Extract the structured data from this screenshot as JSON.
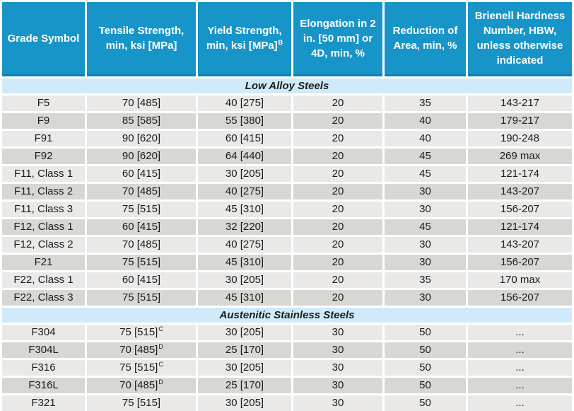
{
  "colors": {
    "header-bg": "#1895c8",
    "header-border": "#0e83ab",
    "header-text": "#ffffff",
    "section-bg": "#cfeaf8",
    "row-light": "#eae9e7",
    "row-dark": "#d8d7d4",
    "text": "#1c1c1c",
    "table-bottom": "#1b9fc7",
    "gap": "#ffffff"
  },
  "table": {
    "columns": [
      {
        "label": "Grade Symbol",
        "sup": ""
      },
      {
        "label": "Tensile Strength, min, ksi [MPa]",
        "sup": ""
      },
      {
        "label": "Yield Strength, min, ksi [MPa]",
        "sup": "B"
      },
      {
        "label": "Elongation in 2 in. [50 mm] or 4D, min, %",
        "sup": ""
      },
      {
        "label": "Reduction of Area, min, %",
        "sup": ""
      },
      {
        "label": "Brienell Hardness Number, HBW, unless otherwise indicated",
        "sup": ""
      }
    ],
    "sections": [
      {
        "title": "Low Alloy Steels",
        "rows": [
          {
            "cells": [
              {
                "v": "F5"
              },
              {
                "v": "70 [485]"
              },
              {
                "v": "40 [275]"
              },
              {
                "v": "20"
              },
              {
                "v": "35"
              },
              {
                "v": "143-217"
              }
            ]
          },
          {
            "cells": [
              {
                "v": "F9"
              },
              {
                "v": "85 [585]"
              },
              {
                "v": "55 [380]"
              },
              {
                "v": "20"
              },
              {
                "v": "40"
              },
              {
                "v": "179-217"
              }
            ]
          },
          {
            "cells": [
              {
                "v": "F91"
              },
              {
                "v": "90 [620]"
              },
              {
                "v": "60 [415]"
              },
              {
                "v": "20"
              },
              {
                "v": "40"
              },
              {
                "v": "190-248"
              }
            ]
          },
          {
            "cells": [
              {
                "v": "F92"
              },
              {
                "v": "90 [620]"
              },
              {
                "v": "64 [440]"
              },
              {
                "v": "20"
              },
              {
                "v": "45"
              },
              {
                "v": "269 max"
              }
            ]
          },
          {
            "cells": [
              {
                "v": "F11, Class 1"
              },
              {
                "v": "60 [415]"
              },
              {
                "v": "30 [205]"
              },
              {
                "v": "20"
              },
              {
                "v": "45"
              },
              {
                "v": "121-174"
              }
            ]
          },
          {
            "cells": [
              {
                "v": "F11, Class 2"
              },
              {
                "v": "70 [485]"
              },
              {
                "v": "40 [275]"
              },
              {
                "v": "20"
              },
              {
                "v": "30"
              },
              {
                "v": "143-207"
              }
            ]
          },
          {
            "cells": [
              {
                "v": "F11, Class 3"
              },
              {
                "v": "75 [515]"
              },
              {
                "v": "45 [310]"
              },
              {
                "v": "20"
              },
              {
                "v": "30"
              },
              {
                "v": "156-207"
              }
            ]
          },
          {
            "cells": [
              {
                "v": "F12, Class 1"
              },
              {
                "v": "60 [415]"
              },
              {
                "v": "32 [220]"
              },
              {
                "v": "20"
              },
              {
                "v": "45"
              },
              {
                "v": "121-174"
              }
            ]
          },
          {
            "cells": [
              {
                "v": "F12, Class 2"
              },
              {
                "v": "70 [485]"
              },
              {
                "v": "40 [275]"
              },
              {
                "v": "20"
              },
              {
                "v": "30"
              },
              {
                "v": "143-207"
              }
            ]
          },
          {
            "cells": [
              {
                "v": "F21"
              },
              {
                "v": "75 [515]"
              },
              {
                "v": "45 [310]"
              },
              {
                "v": "20"
              },
              {
                "v": "30"
              },
              {
                "v": "156-207"
              }
            ]
          },
          {
            "cells": [
              {
                "v": "F22, Class 1"
              },
              {
                "v": "60 [415]"
              },
              {
                "v": "30 [205]"
              },
              {
                "v": "20"
              },
              {
                "v": "35"
              },
              {
                "v": "170 max"
              }
            ]
          },
          {
            "cells": [
              {
                "v": "F22, Class 3"
              },
              {
                "v": "75 [515]"
              },
              {
                "v": "45 [310]"
              },
              {
                "v": "20"
              },
              {
                "v": "30"
              },
              {
                "v": "156-207"
              }
            ]
          }
        ]
      },
      {
        "title": "Austenitic Stainless Steels",
        "rows": [
          {
            "cells": [
              {
                "v": "F304"
              },
              {
                "v": "75 [515]",
                "sup": "C"
              },
              {
                "v": "30 [205]"
              },
              {
                "v": "30"
              },
              {
                "v": "50"
              },
              {
                "v": "..."
              }
            ]
          },
          {
            "cells": [
              {
                "v": "F304L"
              },
              {
                "v": "70 [485]",
                "sup": "D"
              },
              {
                "v": "25 [170]"
              },
              {
                "v": "30"
              },
              {
                "v": "50"
              },
              {
                "v": "..."
              }
            ]
          },
          {
            "cells": [
              {
                "v": "F316"
              },
              {
                "v": "75 [515]",
                "sup": "C"
              },
              {
                "v": "30 [205]"
              },
              {
                "v": "30"
              },
              {
                "v": "50"
              },
              {
                "v": "..."
              }
            ]
          },
          {
            "cells": [
              {
                "v": "F316L"
              },
              {
                "v": "70 [485]",
                "sup": "D"
              },
              {
                "v": "25 [170]"
              },
              {
                "v": "30"
              },
              {
                "v": "50"
              },
              {
                "v": "..."
              }
            ]
          },
          {
            "cells": [
              {
                "v": "F321"
              },
              {
                "v": "75 [515]"
              },
              {
                "v": "30 [205]"
              },
              {
                "v": "30"
              },
              {
                "v": "50"
              },
              {
                "v": "..."
              }
            ]
          }
        ]
      }
    ]
  }
}
